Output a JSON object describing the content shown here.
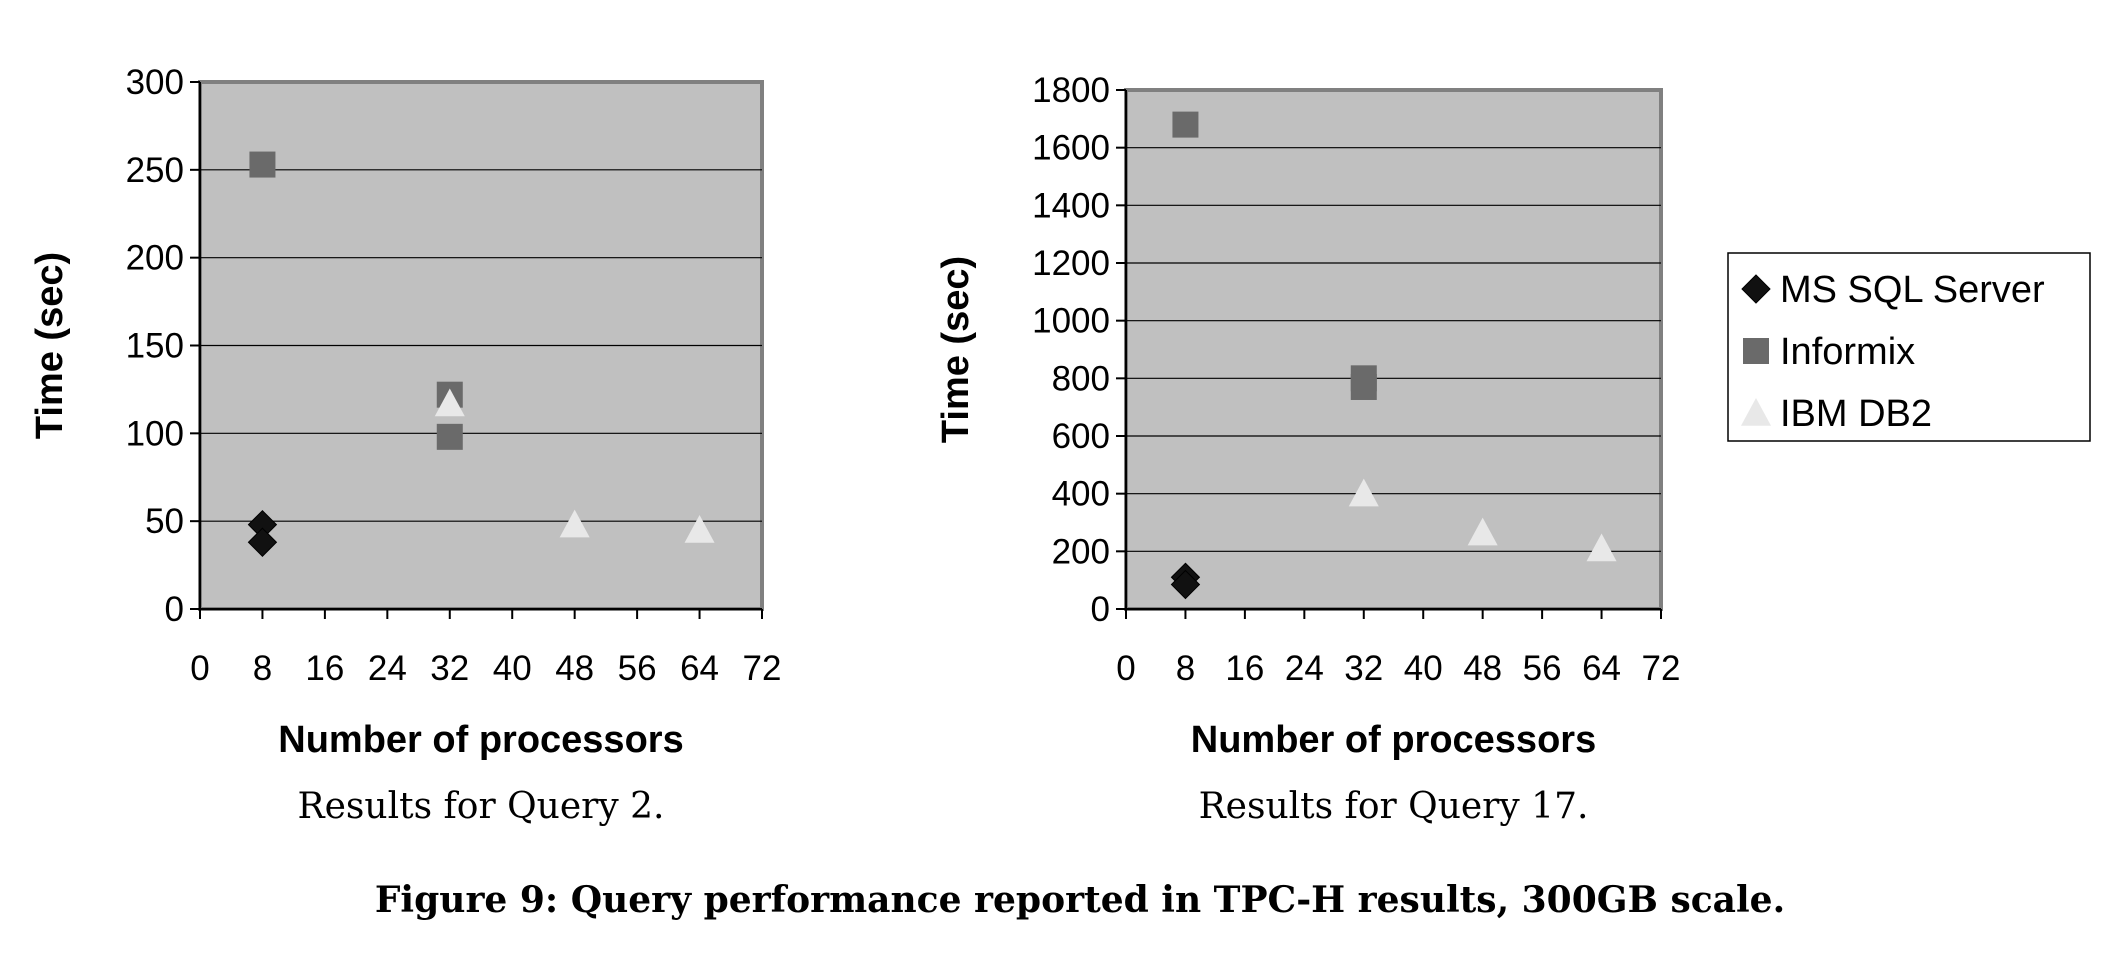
{
  "figure": {
    "caption": "Figure 9: Query performance reported in TPC-H results, 300GB scale."
  },
  "legend": {
    "items": [
      {
        "label": "MS SQL Server",
        "marker": "diamond",
        "color": "#111111"
      },
      {
        "label": "Informix",
        "marker": "square",
        "color": "#6a6a6a"
      },
      {
        "label": "IBM DB2",
        "marker": "triangle",
        "color": "#e8e8e8"
      }
    ]
  },
  "chart_data": [
    {
      "type": "scatter",
      "caption": "Results for Query 2.",
      "xlabel": "Number of processors",
      "ylabel": "Time (sec)",
      "xlim": [
        0,
        72
      ],
      "ylim": [
        0,
        300
      ],
      "xticks": [
        0,
        8,
        16,
        24,
        32,
        40,
        48,
        56,
        64,
        72
      ],
      "yticks": [
        0,
        50,
        100,
        150,
        200,
        250,
        300
      ],
      "grid": true,
      "plot_background": "#c0c0c0",
      "series": [
        {
          "name": "MS SQL Server",
          "marker": "diamond",
          "color": "#111111",
          "points": [
            {
              "x": 8,
              "y": 48
            },
            {
              "x": 8,
              "y": 38
            }
          ]
        },
        {
          "name": "Informix",
          "marker": "square",
          "color": "#6a6a6a",
          "points": [
            {
              "x": 8,
              "y": 253
            },
            {
              "x": 32,
              "y": 122
            },
            {
              "x": 32,
              "y": 98
            }
          ]
        },
        {
          "name": "IBM DB2",
          "marker": "triangle",
          "color": "#e8e8e8",
          "points": [
            {
              "x": 32,
              "y": 117
            },
            {
              "x": 48,
              "y": 48
            },
            {
              "x": 64,
              "y": 45
            }
          ]
        }
      ]
    },
    {
      "type": "scatter",
      "caption": "Results for Query 17.",
      "xlabel": "Number of processors",
      "ylabel": "Time (sec)",
      "xlim": [
        0,
        72
      ],
      "ylim": [
        0,
        1800
      ],
      "xticks": [
        0,
        8,
        16,
        24,
        32,
        40,
        48,
        56,
        64,
        72
      ],
      "yticks": [
        0,
        200,
        400,
        600,
        800,
        1000,
        1200,
        1400,
        1600,
        1800
      ],
      "grid": true,
      "plot_background": "#c0c0c0",
      "series": [
        {
          "name": "MS SQL Server",
          "marker": "diamond",
          "color": "#111111",
          "points": [
            {
              "x": 8,
              "y": 110
            },
            {
              "x": 8,
              "y": 85
            }
          ]
        },
        {
          "name": "Informix",
          "marker": "square",
          "color": "#6a6a6a",
          "points": [
            {
              "x": 8,
              "y": 1680
            },
            {
              "x": 32,
              "y": 800
            },
            {
              "x": 32,
              "y": 770
            }
          ]
        },
        {
          "name": "IBM DB2",
          "marker": "triangle",
          "color": "#e8e8e8",
          "points": [
            {
              "x": 32,
              "y": 400
            },
            {
              "x": 48,
              "y": 265
            },
            {
              "x": 64,
              "y": 210
            }
          ]
        }
      ]
    }
  ]
}
